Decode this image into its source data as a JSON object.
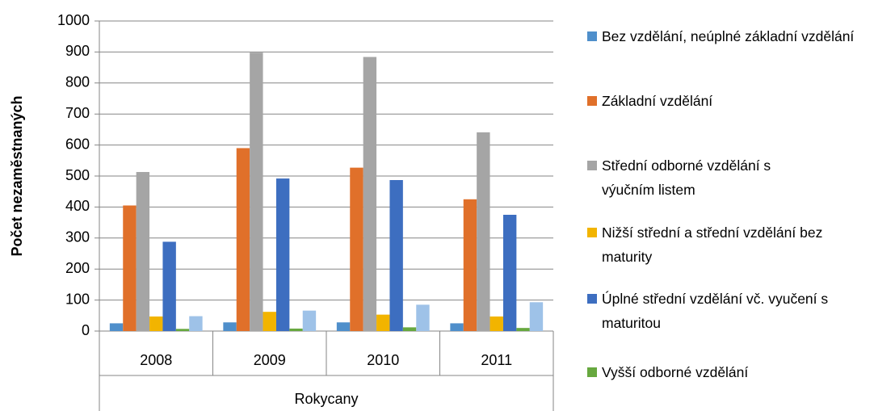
{
  "chart_data": {
    "type": "bar",
    "y_axis_label": "Počet nezaměstnaných",
    "categories": [
      "2008",
      "2009",
      "2010",
      "2011"
    ],
    "group_label": "Rokycany",
    "ylim": [
      0,
      1000
    ],
    "yticks": [
      0,
      100,
      200,
      300,
      400,
      500,
      600,
      700,
      800,
      900,
      1000
    ],
    "grid": true,
    "series": [
      {
        "name": "Bez vzdělání, neúplné základní vzdělání",
        "color": "#4f8fcb",
        "values": [
          25,
          28,
          28,
          25
        ]
      },
      {
        "name": "Základní vzdělání",
        "color": "#e0702a",
        "values": [
          405,
          590,
          527,
          425
        ]
      },
      {
        "name": "Střední odborné vzdělání s výučním listem",
        "color": "#a5a5a5",
        "values": [
          513,
          898,
          884,
          641
        ]
      },
      {
        "name": "Nižší střední a střední vzdělání bez maturity",
        "color": "#f2b400",
        "values": [
          47,
          62,
          53,
          47
        ]
      },
      {
        "name": "Úplné střední vzdělání vč. vyučení s maturitou",
        "color": "#3d6ec0",
        "values": [
          288,
          492,
          487,
          375
        ]
      },
      {
        "name": "Vyšší odborné vzdělání",
        "color": "#67a83f",
        "values": [
          7,
          8,
          12,
          10
        ]
      },
      {
        "color": "#9ec2e8",
        "values": [
          48,
          66,
          85,
          93
        ]
      }
    ]
  }
}
